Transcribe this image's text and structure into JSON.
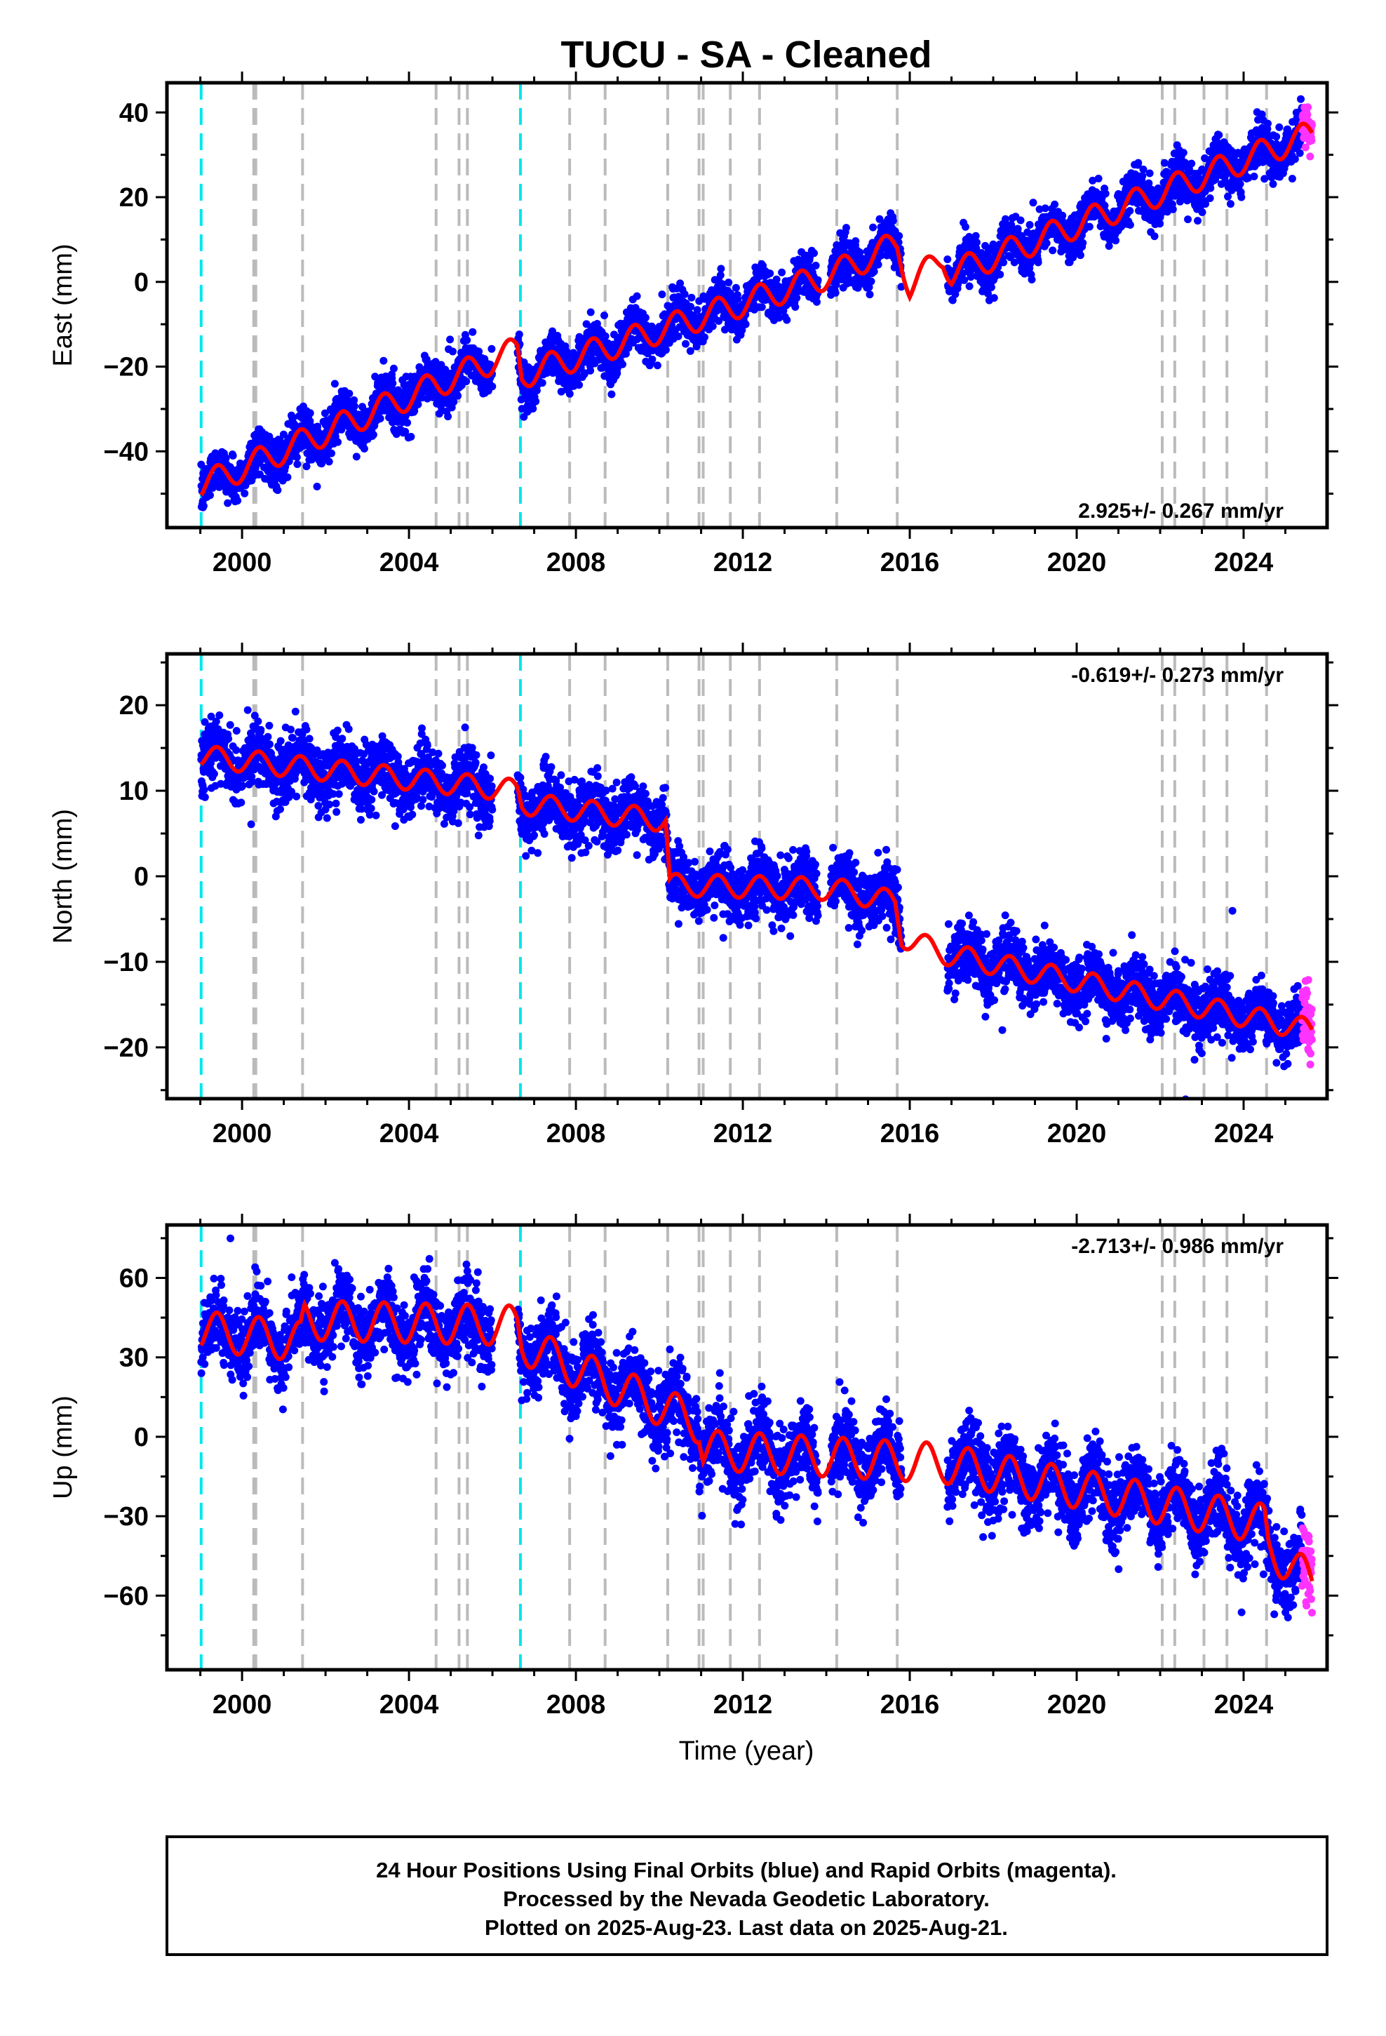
{
  "chart_data": {
    "type": "scatter",
    "title": "TUCU  - SA - Cleaned",
    "xlabel": "Time (year)",
    "xlim": [
      1998.2,
      2026.0
    ],
    "x_ticks": [
      2000,
      2004,
      2008,
      2012,
      2016,
      2020,
      2024
    ],
    "colors": {
      "final_orbits": "#0000ff",
      "rapid_orbits": "#ff33ff",
      "model": "#ff0000",
      "antenna_change_lines": "#00e5ee",
      "event_lines": "#bbbbbb"
    },
    "antenna_changes": [
      1999.02,
      2006.67
    ],
    "events": [
      2000.28,
      2000.33,
      2001.45,
      2004.65,
      2005.2,
      2005.4,
      2007.85,
      2008.7,
      2010.2,
      2010.95,
      2011.05,
      2011.7,
      2012.4,
      2014.25,
      2015.7,
      2022.05,
      2022.35,
      2023.05,
      2023.6,
      2024.55
    ],
    "data_start": 1999.02,
    "data_end": 2025.64,
    "rapid_start": 2025.4,
    "panels": [
      {
        "name": "East",
        "ylabel": "East (mm)",
        "ylim": [
          -58,
          47
        ],
        "y_ticks": [
          -40,
          -20,
          0,
          20,
          40
        ],
        "rate_label": "2.925+/- 0.267 mm/yr",
        "rate_position": "bottom-right",
        "model_anchors": [
          [
            1999.05,
            -48
          ],
          [
            2006.6,
            -16
          ],
          [
            2006.7,
            -22
          ],
          [
            2014.2,
            2
          ],
          [
            2015.7,
            9
          ],
          [
            2016.0,
            -1
          ],
          [
            2016.8,
            6
          ],
          [
            2017.0,
            2
          ],
          [
            2025.64,
            35
          ]
        ],
        "seasonal_amplitude_mm": 3.2,
        "scatter_sigma_mm": 2.6
      },
      {
        "name": "North",
        "ylabel": "North (mm)",
        "ylim": [
          -26,
          26
        ],
        "y_ticks": [
          -20,
          -10,
          0,
          10,
          20
        ],
        "rate_label": "-0.619+/- 0.273 mm/yr",
        "rate_position": "top-right",
        "model_anchors": [
          [
            1999.05,
            14
          ],
          [
            2006.6,
            10
          ],
          [
            2006.7,
            8.5
          ],
          [
            2010.15,
            6.5
          ],
          [
            2010.25,
            -1
          ],
          [
            2014.2,
            -1.5
          ],
          [
            2015.65,
            -3
          ],
          [
            2015.8,
            -7
          ],
          [
            2016.8,
            -9
          ],
          [
            2025.64,
            -18
          ]
        ],
        "seasonal_amplitude_mm": 1.3,
        "scatter_sigma_mm": 1.8
      },
      {
        "name": "Up",
        "ylabel": "Up (mm)",
        "ylim": [
          -88,
          80
        ],
        "y_ticks": [
          -60,
          -30,
          0,
          30,
          60
        ],
        "rate_label": "-2.713+/- 0.986 mm/yr",
        "rate_position": "top-right",
        "model_anchors": [
          [
            1999.05,
            40
          ],
          [
            2001.4,
            36
          ],
          [
            2001.5,
            44
          ],
          [
            2006.6,
            42
          ],
          [
            2006.7,
            35
          ],
          [
            2010.95,
            5
          ],
          [
            2011.05,
            -5
          ],
          [
            2016.8,
            -10
          ],
          [
            2024.5,
            -33
          ],
          [
            2024.6,
            -42
          ],
          [
            2025.64,
            -55
          ]
        ],
        "seasonal_amplitude_mm": 7.5,
        "scatter_sigma_mm": 7.0
      }
    ]
  },
  "footer": {
    "line1": "24 Hour Positions Using Final Orbits (blue) and Rapid Orbits (magenta).",
    "line2": "Processed by the Nevada Geodetic Laboratory.",
    "line3": "Plotted on 2025-Aug-23. Last data on 2025-Aug-21."
  }
}
